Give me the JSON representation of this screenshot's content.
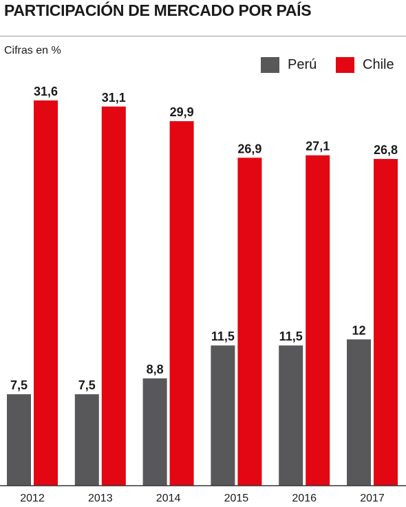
{
  "title": "PARTICIPACIÓN DE MERCADO POR PAÍS",
  "subtitle": "Cifras en %",
  "colors": {
    "peru": "#58585a",
    "chile": "#e30613",
    "axis": "#333333"
  },
  "chart_data": {
    "type": "bar",
    "categories": [
      "2012",
      "2013",
      "2014",
      "2015",
      "2016",
      "2017"
    ],
    "series": [
      {
        "name": "Perú",
        "values": [
          7.5,
          7.5,
          8.8,
          11.5,
          11.5,
          12
        ],
        "labels": [
          "7,5",
          "7,5",
          "8,8",
          "11,5",
          "11,5",
          "12"
        ]
      },
      {
        "name": "Chile",
        "values": [
          31.6,
          31.1,
          29.9,
          26.9,
          27.1,
          26.8
        ],
        "labels": [
          "31,6",
          "31,1",
          "29,9",
          "26,9",
          "27,1",
          "26,8"
        ]
      }
    ],
    "title": "PARTICIPACIÓN DE MERCADO POR PAÍS",
    "ylabel": "Cifras en %",
    "ylim": [
      0,
      31.6
    ],
    "grid": false,
    "legend": "top-right"
  }
}
